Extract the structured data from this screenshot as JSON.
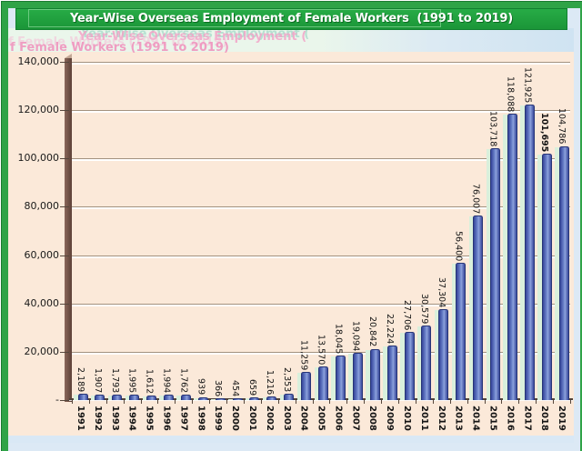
{
  "title": {
    "text": "Year-Wise Overseas Employment of Female Workers  (1991 to 2019)",
    "bg_color": "#1FA23E",
    "text_color": "#FFFFFF"
  },
  "ghost_artifact": {
    "line1": "Year-Wise Overseas Employment (",
    "line2": "f Female Workers (1991 to 2019)",
    "pink": "#F08FBC",
    "teal": "#8CD0BE"
  },
  "chart_data": {
    "type": "bar",
    "title": "Year-Wise Overseas Employment of Female Workers (1991 to 2019)",
    "xlabel": "",
    "ylabel": "",
    "ylim": [
      0,
      140000
    ],
    "ytick_step": 20000,
    "ytick_labels": [
      "140,000",
      "120,000",
      "100,000",
      "80,000",
      "60,000",
      "40,000",
      "20,000",
      "-"
    ],
    "grid": true,
    "legend": "none",
    "categories": [
      "1991",
      "1992",
      "1993",
      "1994",
      "1995",
      "1996",
      "1997",
      "1998",
      "1999",
      "2000",
      "2001",
      "2002",
      "2003",
      "2004",
      "2005",
      "2006",
      "2007",
      "2008",
      "2009",
      "2010",
      "2011",
      "2012",
      "2013",
      "2014",
      "2015",
      "2016",
      "2017",
      "2018",
      "2019"
    ],
    "values": [
      2189,
      1907,
      1793,
      1995,
      1612,
      1994,
      1762,
      939,
      366,
      454,
      659,
      1216,
      2353,
      11259,
      13570,
      18045,
      19094,
      20842,
      22224,
      27706,
      30579,
      37304,
      56400,
      76007,
      103718,
      118088,
      121925,
      101695,
      104786
    ],
    "labels": [
      "2,189",
      "1,907",
      "1,793",
      "1,995",
      "1,612",
      "1,994",
      "1,762",
      "939",
      "366",
      "454",
      "659",
      "1,216",
      "2,353",
      "11,259",
      "13,570",
      "18,045",
      "19,094",
      "20,842",
      "22,224",
      "27,706",
      "30,579",
      "37,304",
      "56,400",
      "76,007",
      "103,718",
      "118,088",
      "121,925",
      "101,695",
      "104,786"
    ],
    "bold_year": "2018",
    "bar_color": "#5F77C1",
    "bar_edge_color": "#273577",
    "bar_side_color": "#D9F0DC",
    "plot_bg": "#FBE9D9",
    "wall_color": "#6B4B41",
    "gridline_color": "#A3927F",
    "frame_color": "#2FA347"
  }
}
